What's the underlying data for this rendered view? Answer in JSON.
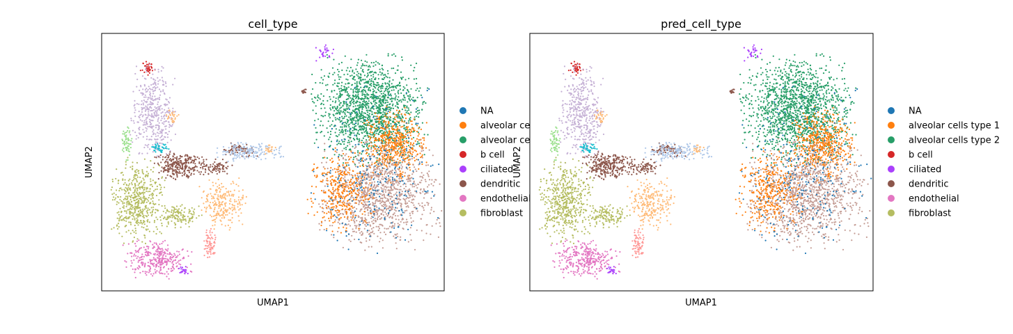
{
  "chart_data": [
    {
      "type": "scatter",
      "title": "cell_type",
      "xlabel": "UMAP1",
      "ylabel": "UMAP2",
      "grid": false,
      "ticks": false,
      "legend_placement": "right-outside",
      "legend": [
        {
          "label": "NA",
          "color": "#1f77b4"
        },
        {
          "label": "alveolar ce",
          "color": "#ff7f0e"
        },
        {
          "label": "alveolar ce",
          "color": "#279e68"
        },
        {
          "label": "b cell",
          "color": "#d62728"
        },
        {
          "label": "ciliated",
          "color": "#aa40fc"
        },
        {
          "label": "dendritic",
          "color": "#8c564b"
        },
        {
          "label": "endothelial",
          "color": "#e377c2"
        },
        {
          "label": "fibroblast",
          "color": "#b5bd61"
        }
      ]
    },
    {
      "type": "scatter",
      "title": "pred_cell_type",
      "xlabel": "UMAP1",
      "ylabel": "UMAP2",
      "grid": false,
      "ticks": false,
      "legend_placement": "right-outside",
      "legend": [
        {
          "label": "NA",
          "color": "#1f77b4"
        },
        {
          "label": "alveolar cells type 1",
          "color": "#ff7f0e"
        },
        {
          "label": "alveolar cells type 2",
          "color": "#279e68"
        },
        {
          "label": "b cell",
          "color": "#d62728"
        },
        {
          "label": "ciliated",
          "color": "#aa40fc"
        },
        {
          "label": "dendritic",
          "color": "#8c564b"
        },
        {
          "label": "endothelial",
          "color": "#e377c2"
        },
        {
          "label": "fibroblast",
          "color": "#b5bd61"
        }
      ]
    }
  ]
}
